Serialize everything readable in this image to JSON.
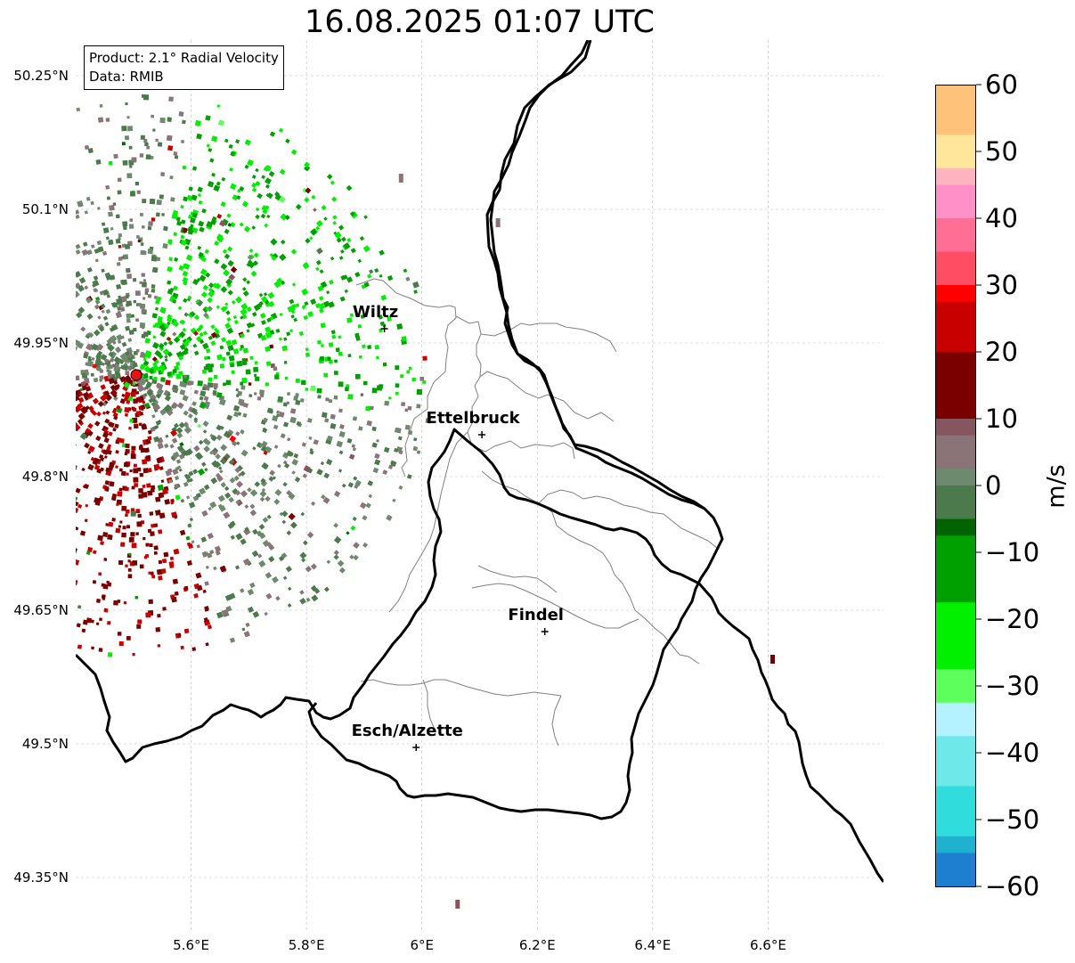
{
  "title": "16.08.2025 01:07 UTC",
  "info": {
    "product": "Product: 2.1° Radial Velocity",
    "source": "Data: RMIB"
  },
  "axes": {
    "lon_range": [
      5.4,
      6.8
    ],
    "lat_range": [
      49.29,
      50.29
    ],
    "lat_ticks": [
      "50.25°N",
      "50.1°N",
      "49.95°N",
      "49.8°N",
      "49.65°N",
      "49.5°N",
      "49.35°N"
    ],
    "lon_ticks": [
      "5.6°E",
      "5.8°E",
      "6°E",
      "6.2°E",
      "6.4°E",
      "6.6°E"
    ],
    "grid": "dashed"
  },
  "places": [
    {
      "name": "Wiltz",
      "lon": 5.935,
      "lat": 49.966
    },
    {
      "name": "Ettelbruck",
      "lon": 6.104,
      "lat": 49.847
    },
    {
      "name": "Findel",
      "lon": 6.213,
      "lat": 49.626
    },
    {
      "name": "Esch/Alzette",
      "lon": 5.99,
      "lat": 49.496
    }
  ],
  "radar_site": {
    "lon": 5.505,
    "lat": 49.914,
    "color": "#ee1111"
  },
  "colorbar": {
    "label": "m/s",
    "ticks": [
      "60",
      "50",
      "40",
      "30",
      "20",
      "10",
      "0",
      "−10",
      "−20",
      "−30",
      "−40",
      "−50",
      "−60"
    ],
    "min": -60,
    "max": 60,
    "stops": [
      [
        "#ff9950",
        60
      ],
      [
        "#ffc27a",
        53
      ],
      [
        "#ffe69a",
        48
      ],
      [
        "#ffb3c0",
        44
      ],
      [
        "#ff90c8",
        40
      ],
      [
        "#ff6e94",
        35
      ],
      [
        "#ff4d63",
        31
      ],
      [
        "#ff0000",
        28
      ],
      [
        "#c80000",
        20
      ],
      [
        "#7a0000",
        11
      ],
      [
        "#855560",
        8
      ],
      [
        "#8a7478",
        3
      ],
      [
        "#6e8a6e",
        -1
      ],
      [
        "#4c7a4c",
        -6
      ],
      [
        "#006400",
        -8
      ],
      [
        "#00a000",
        -18
      ],
      [
        "#00f000",
        -28
      ],
      [
        "#5cff5c",
        -32
      ],
      [
        "#b4f2ff",
        -37
      ],
      [
        "#6ee8e8",
        -45
      ],
      [
        "#30dcdc",
        -52
      ],
      [
        "#20b0d0",
        -56
      ],
      [
        "#1e7fd0",
        -60
      ]
    ]
  },
  "colors": {
    "border": "#000000",
    "cantons": "#808080",
    "grid": "#bbbbbb"
  }
}
